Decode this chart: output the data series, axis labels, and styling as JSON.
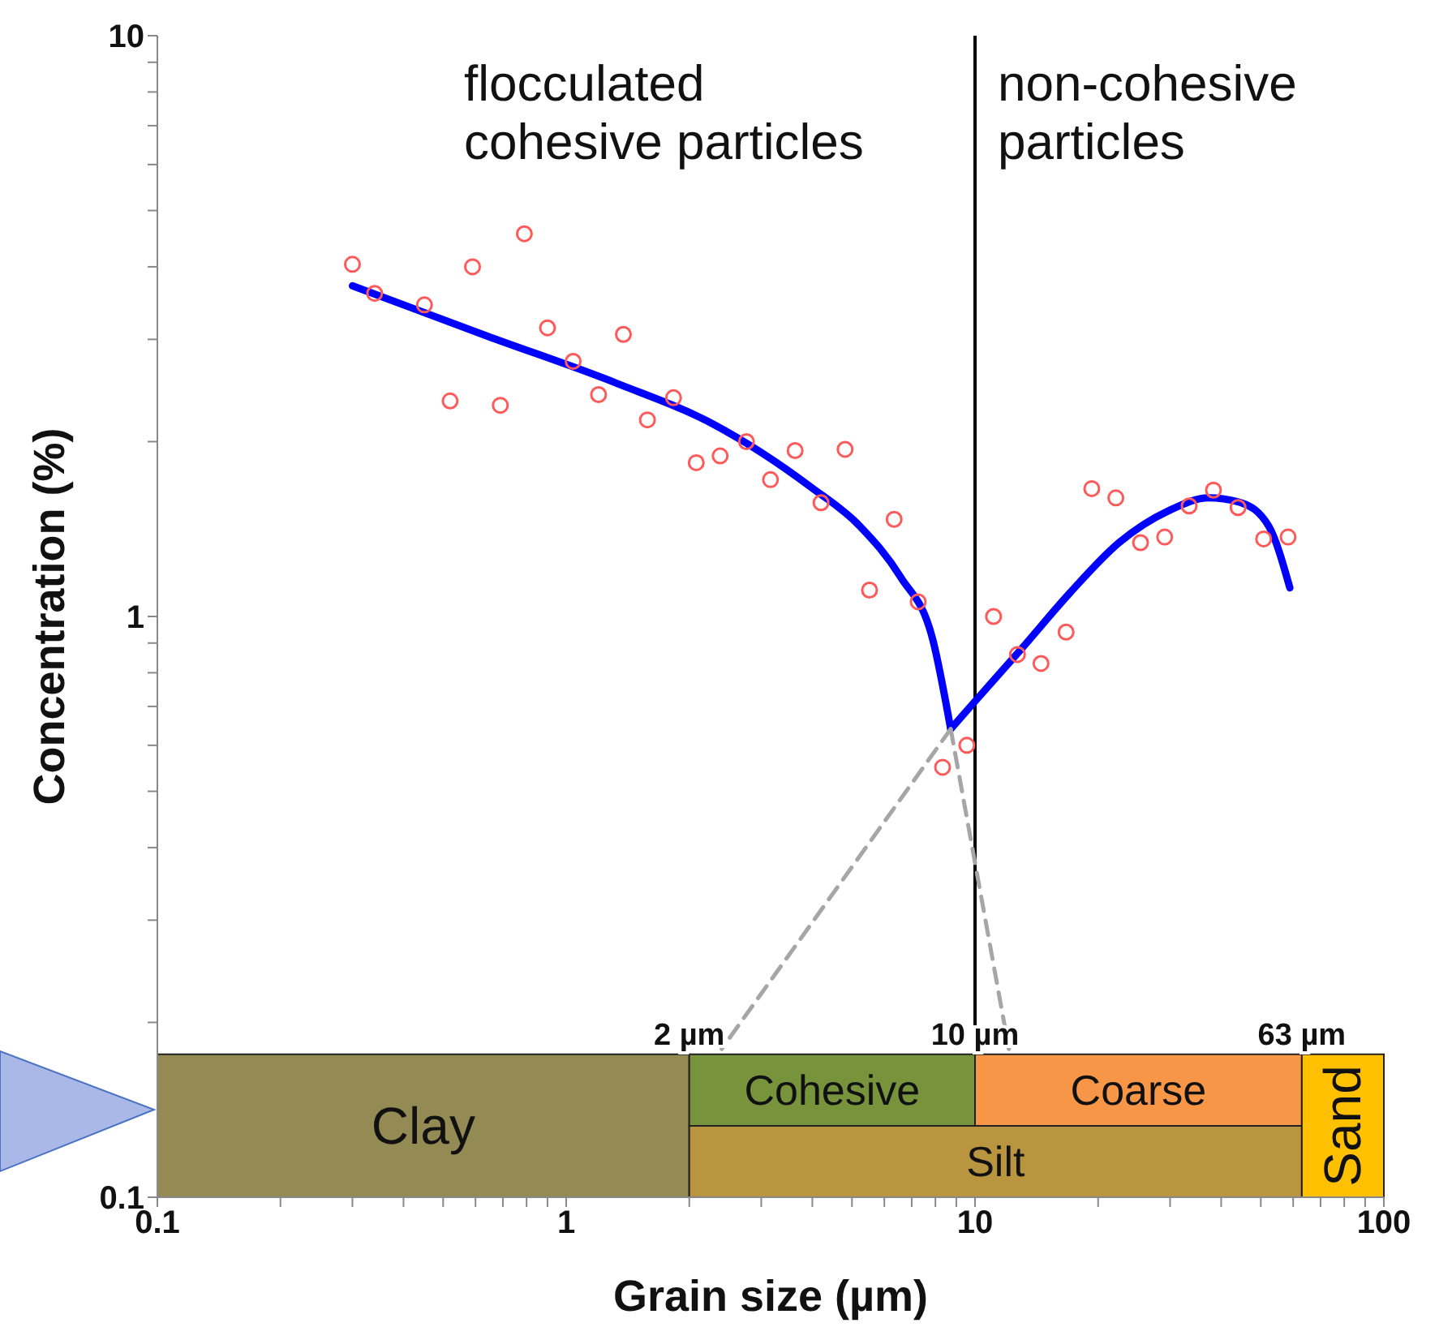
{
  "chart_data": {
    "type": "scatter",
    "xlabel": "Grain size (µm)",
    "ylabel": "Concentration (%)",
    "log": "xy",
    "xlim": [
      0.1,
      100
    ],
    "ylim": [
      0.1,
      10
    ],
    "xticks": [
      0.1,
      {
        "value": 0.2,
        "label": null
      },
      {
        "value": 0.3,
        "label": null
      },
      {
        "value": 0.4,
        "label": null
      },
      {
        "value": 0.5,
        "label": null
      },
      {
        "value": 0.6,
        "label": null
      },
      {
        "value": 0.7,
        "label": null
      },
      {
        "value": 0.8,
        "label": null
      },
      {
        "value": 0.9,
        "label": null
      },
      1,
      {
        "value": 2,
        "label": null
      },
      {
        "value": 3,
        "label": null
      },
      {
        "value": 4,
        "label": null
      },
      {
        "value": 5,
        "label": null
      },
      {
        "value": 6,
        "label": null
      },
      {
        "value": 7,
        "label": null
      },
      {
        "value": 8,
        "label": null
      },
      {
        "value": 9,
        "label": null
      },
      10,
      {
        "value": 20,
        "label": null
      },
      {
        "value": 30,
        "label": null
      },
      {
        "value": 40,
        "label": null
      },
      {
        "value": 50,
        "label": null
      },
      {
        "value": 60,
        "label": null
      },
      {
        "value": 70,
        "label": null
      },
      {
        "value": 80,
        "label": null
      },
      {
        "value": 90,
        "label": null
      },
      100
    ],
    "yticks": [
      0.1,
      {
        "value": 0.2,
        "label": null
      },
      {
        "value": 0.3,
        "label": null
      },
      {
        "value": 0.4,
        "label": null
      },
      {
        "value": 0.5,
        "label": null
      },
      {
        "value": 0.6,
        "label": null
      },
      {
        "value": 0.7,
        "label": null
      },
      {
        "value": 0.8,
        "label": null
      },
      {
        "value": 0.9,
        "label": null
      },
      1,
      {
        "value": 2,
        "label": null
      },
      {
        "value": 3,
        "label": null
      },
      {
        "value": 4,
        "label": null
      },
      {
        "value": 5,
        "label": null
      },
      {
        "value": 6,
        "label": null
      },
      {
        "value": 7,
        "label": null
      },
      {
        "value": 8,
        "label": null
      },
      {
        "value": 9,
        "label": null
      },
      10
    ],
    "series": [
      {
        "color": "#ff5a5a",
        "marker": "circle",
        "x": [
          0.3,
          0.34,
          0.45,
          0.59,
          0.79,
          0.9,
          1.38,
          0.52,
          0.69,
          1.04,
          1.2,
          1.58,
          1.83,
          2.08,
          2.38,
          2.76,
          3.16,
          3.63,
          4.81,
          4.2,
          6.34,
          5.52,
          7.26,
          11.1,
          9.55,
          8.33,
          12.7,
          14.5,
          16.7,
          19.3,
          22.1,
          25.4,
          29.1,
          33.4,
          38.3,
          44.0,
          50.8,
          58.3
        ],
        "values": [
          4.04,
          3.6,
          3.44,
          4.0,
          4.56,
          3.14,
          3.06,
          2.35,
          2.31,
          2.75,
          2.41,
          2.18,
          2.38,
          1.84,
          1.89,
          2.0,
          1.72,
          1.93,
          1.94,
          1.57,
          1.47,
          1.11,
          1.06,
          1.0,
          0.6,
          0.55,
          0.86,
          0.83,
          0.94,
          1.66,
          1.6,
          1.34,
          1.37,
          1.55,
          1.65,
          1.54,
          1.36,
          1.37
        ]
      },
      {
        "type": "line",
        "color": "#0000ff",
        "marker": "none",
        "x": [
          0.3,
          0.64,
          1.33,
          2.3,
          3.97,
          5.23,
          6.57,
          7.89,
          8.72
        ],
        "values": [
          3.71,
          3.04,
          2.52,
          2.14,
          1.67,
          1.43,
          1.17,
          0.91,
          0.64
        ]
      },
      {
        "type": "line",
        "color": "#0000ff",
        "marker": "none",
        "x": [
          8.72,
          10.1,
          13.0,
          17.1,
          22.5,
          29.7,
          37.3,
          44.7,
          52.3,
          58.9
        ],
        "values": [
          0.64,
          0.72,
          0.88,
          1.1,
          1.34,
          1.52,
          1.6,
          1.57,
          1.43,
          1.12
        ]
      },
      {
        "type": "line",
        "color": "#a6a6a6",
        "marker": "none",
        "line_style": "dashed",
        "x": [
          8.72,
          2.4
        ],
        "values": [
          0.64,
          0.18
        ]
      },
      {
        "type": "line",
        "color": "#a6a6a6",
        "marker": "none",
        "line_style": "dashed",
        "x": [
          8.72,
          12.1
        ],
        "values": [
          0.64,
          0.18
        ]
      }
    ],
    "ref_lines": [
      {
        "axis": "x",
        "value": 10,
        "color": "#000000"
      }
    ],
    "bands": [
      {
        "axis": "x",
        "from": 0.1,
        "to": 2,
        "label": "Clay",
        "color": "#948a54"
      },
      {
        "axis": "x",
        "from": 2,
        "to": 10,
        "label": "Cohesive",
        "color": "#77933c"
      },
      {
        "axis": "x",
        "from": 10,
        "to": 63,
        "label": "Coarse",
        "color": "#f79646"
      },
      {
        "axis": "x",
        "from": 2,
        "to": 63,
        "label": "Silt",
        "color": "#b9953f"
      },
      {
        "axis": "x",
        "from": 63,
        "to": 100,
        "label": "Sand",
        "color": "#ffc000"
      }
    ],
    "annotations": [
      "flocculated\ncohesive particles",
      "non-cohesive\nparticles",
      "2 µm",
      "10 µm",
      "63 µm"
    ]
  }
}
